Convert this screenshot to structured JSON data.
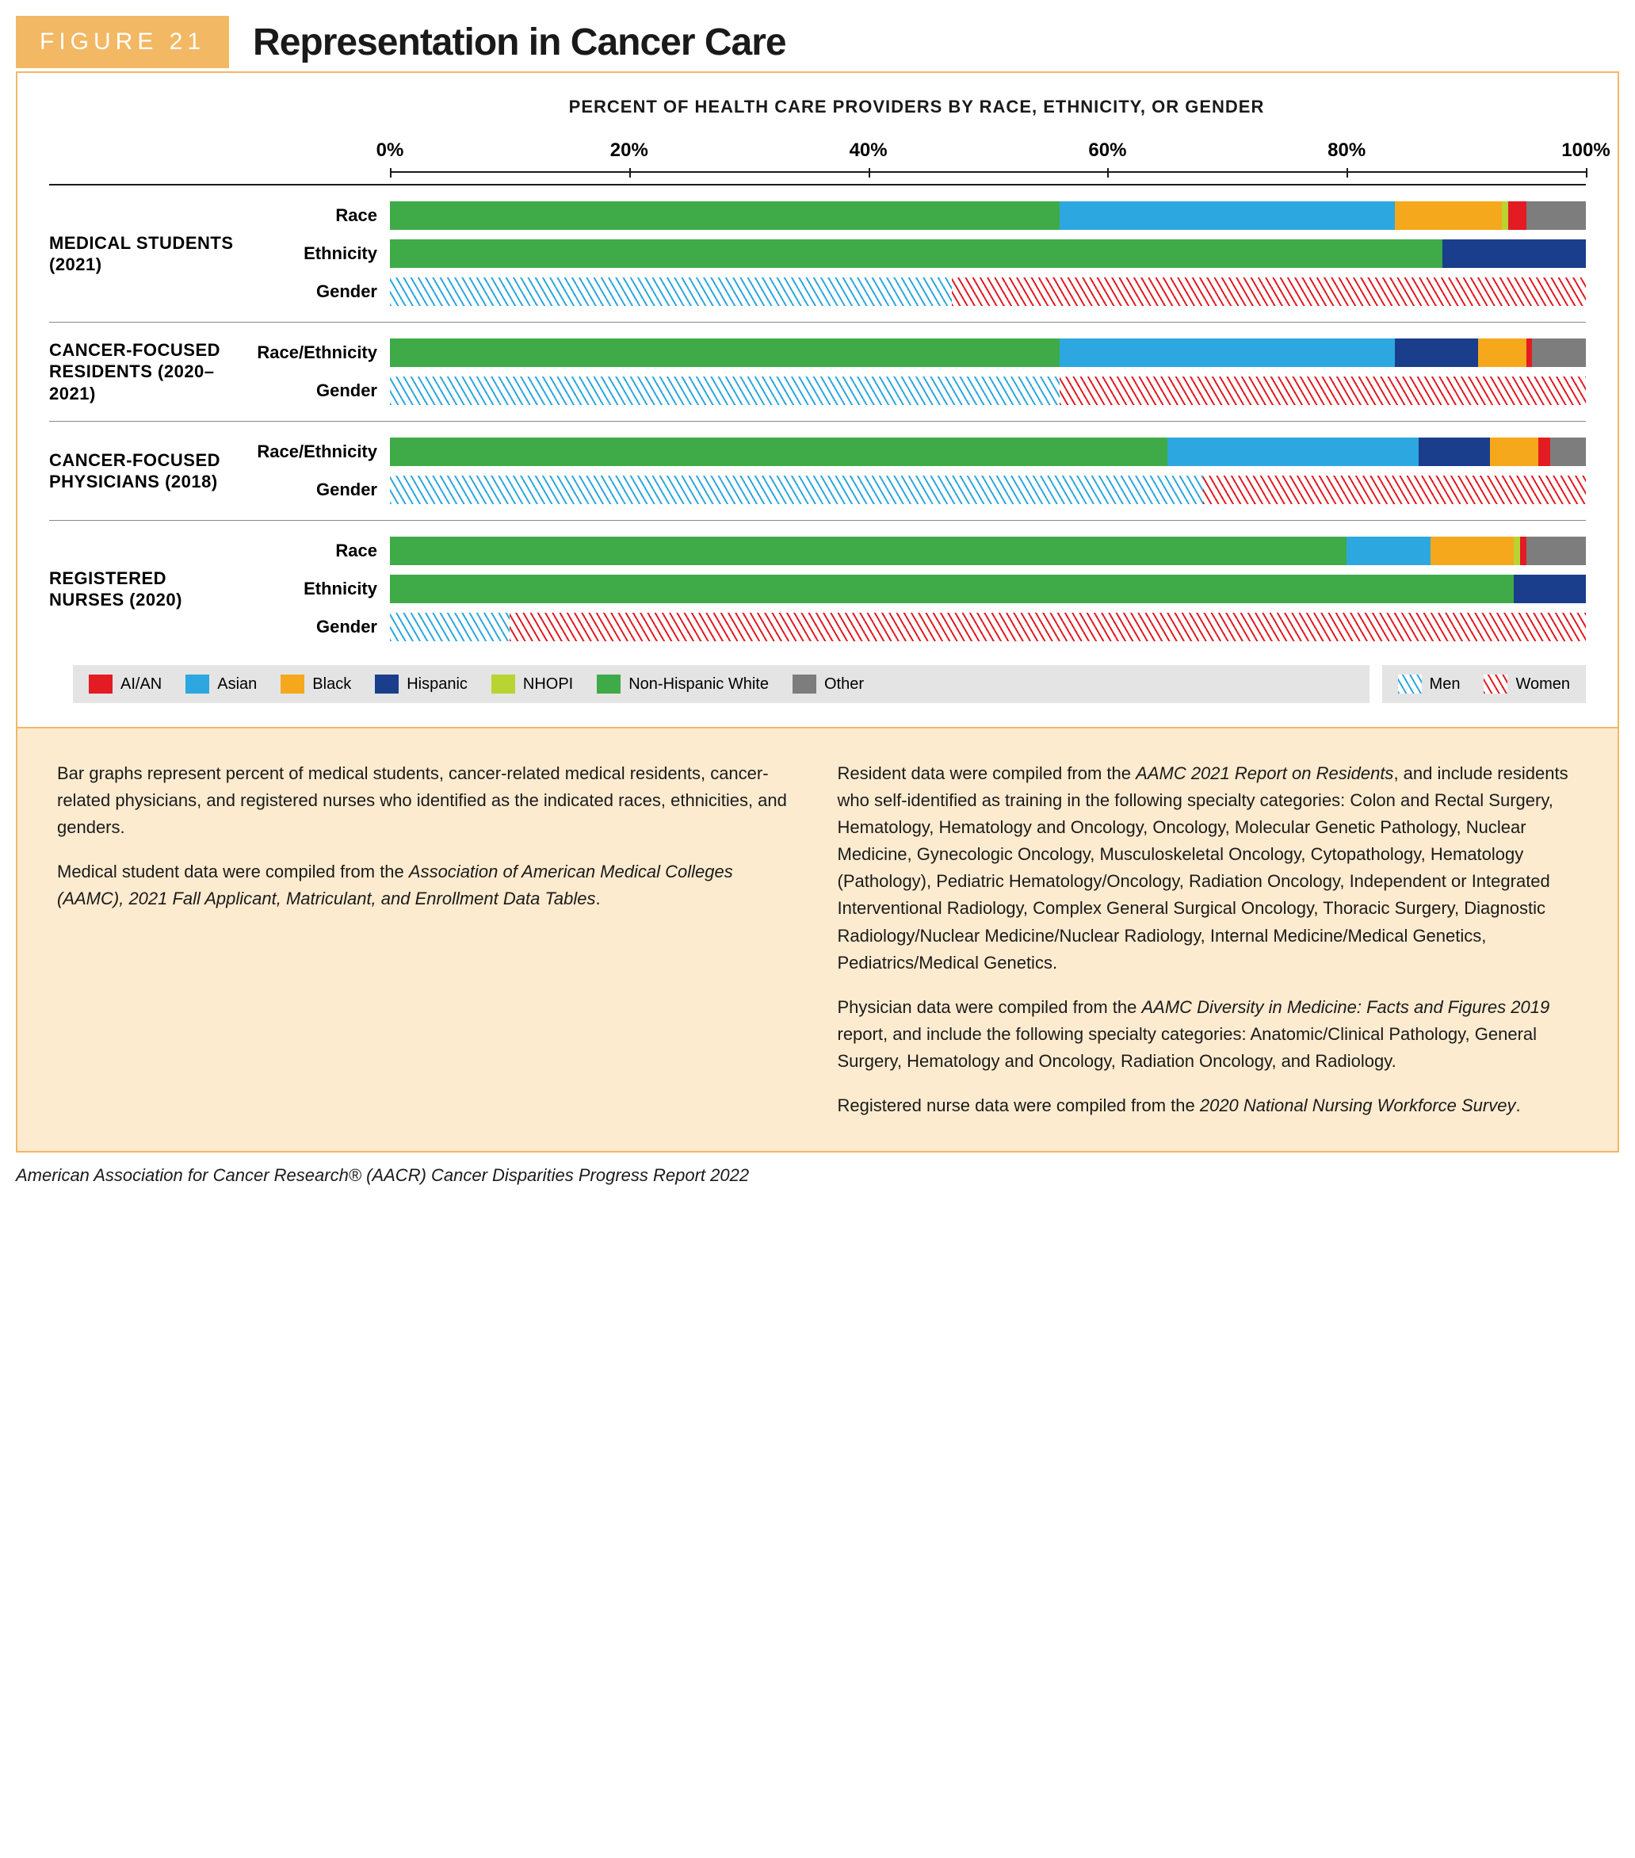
{
  "figure_label": "FIGURE 21",
  "figure_title": "Representation in Cancer Care",
  "chart": {
    "heading": "PERCENT OF HEALTH CARE PROVIDERS BY RACE, ETHNICITY, OR GENDER",
    "axis": {
      "ticks": [
        0,
        20,
        40,
        60,
        80,
        100
      ],
      "labels": [
        "0%",
        "20%",
        "40%",
        "60%",
        "80%",
        "100%"
      ]
    },
    "colors": {
      "aian": "#e31b23",
      "asian": "#2da7df",
      "black": "#f5a81c",
      "hispanic": "#1a3e8b",
      "nhopi": "#b8d432",
      "white": "#3eab48",
      "other": "#7d7d7d",
      "men_stroke": "#2da7df",
      "women_stroke": "#e31b23",
      "pattern_bg": "#ffffff"
    },
    "groups": [
      {
        "label": "MEDICAL STUDENTS (2021)",
        "rows": [
          {
            "name": "Race",
            "type": "solid",
            "segments": [
              {
                "key": "white",
                "pct": 56
              },
              {
                "key": "asian",
                "pct": 28
              },
              {
                "key": "black",
                "pct": 9
              },
              {
                "key": "nhopi",
                "pct": 0.5
              },
              {
                "key": "aian",
                "pct": 1.5
              },
              {
                "key": "other",
                "pct": 5
              }
            ]
          },
          {
            "name": "Ethnicity",
            "type": "solid",
            "segments": [
              {
                "key": "white",
                "pct": 88
              },
              {
                "key": "hispanic",
                "pct": 12
              }
            ]
          },
          {
            "name": "Gender",
            "type": "hatch",
            "segments": [
              {
                "key": "men",
                "pct": 47
              },
              {
                "key": "women",
                "pct": 53
              }
            ]
          }
        ]
      },
      {
        "label": "CANCER-FOCUSED RESIDENTS (2020–2021)",
        "rows": [
          {
            "name": "Race/Ethnicity",
            "type": "solid",
            "segments": [
              {
                "key": "white",
                "pct": 56
              },
              {
                "key": "asian",
                "pct": 28
              },
              {
                "key": "hispanic",
                "pct": 7
              },
              {
                "key": "black",
                "pct": 4
              },
              {
                "key": "aian",
                "pct": 0.5
              },
              {
                "key": "other",
                "pct": 4.5
              }
            ]
          },
          {
            "name": "Gender",
            "type": "hatch",
            "segments": [
              {
                "key": "men",
                "pct": 56
              },
              {
                "key": "women",
                "pct": 44
              }
            ]
          }
        ]
      },
      {
        "label": "CANCER-FOCUSED PHYSICIANS (2018)",
        "rows": [
          {
            "name": "Race/Ethnicity",
            "type": "solid",
            "segments": [
              {
                "key": "white",
                "pct": 65
              },
              {
                "key": "asian",
                "pct": 21
              },
              {
                "key": "hispanic",
                "pct": 6
              },
              {
                "key": "black",
                "pct": 4
              },
              {
                "key": "aian",
                "pct": 1
              },
              {
                "key": "other",
                "pct": 3
              }
            ]
          },
          {
            "name": "Gender",
            "type": "hatch",
            "segments": [
              {
                "key": "men",
                "pct": 68
              },
              {
                "key": "women",
                "pct": 32
              }
            ]
          }
        ]
      },
      {
        "label": "REGISTERED NURSES (2020)",
        "rows": [
          {
            "name": "Race",
            "type": "solid",
            "segments": [
              {
                "key": "white",
                "pct": 80
              },
              {
                "key": "asian",
                "pct": 7
              },
              {
                "key": "black",
                "pct": 7
              },
              {
                "key": "nhopi",
                "pct": 0.5
              },
              {
                "key": "aian",
                "pct": 0.5
              },
              {
                "key": "other",
                "pct": 5
              }
            ]
          },
          {
            "name": "Ethnicity",
            "type": "solid",
            "segments": [
              {
                "key": "white",
                "pct": 94
              },
              {
                "key": "hispanic",
                "pct": 6
              }
            ]
          },
          {
            "name": "Gender",
            "type": "hatch",
            "segments": [
              {
                "key": "men",
                "pct": 10
              },
              {
                "key": "women",
                "pct": 90
              }
            ]
          }
        ]
      }
    ],
    "legend_solid": [
      {
        "key": "aian",
        "label": "AI/AN"
      },
      {
        "key": "asian",
        "label": "Asian"
      },
      {
        "key": "black",
        "label": "Black"
      },
      {
        "key": "hispanic",
        "label": "Hispanic"
      },
      {
        "key": "nhopi",
        "label": "NHOPI"
      },
      {
        "key": "white",
        "label": "Non-Hispanic White"
      },
      {
        "key": "other",
        "label": "Other"
      }
    ],
    "legend_hatch": [
      {
        "key": "men",
        "label": "Men"
      },
      {
        "key": "women",
        "label": "Women"
      }
    ]
  },
  "caption_paragraphs": [
    "Bar graphs represent percent of medical students, cancer-related medical residents, cancer-related physicians, and registered nurses who identified as the indicated races, ethnicities, and genders.",
    "Medical student data were compiled from the <em>Association of American Medical Colleges (AAMC), 2021 Fall Applicant, Matriculant, and Enrollment Data Tables</em>.",
    "Resident data were compiled from the <em>AAMC 2021 Report on Residents</em>, and include residents who self-identified as training in the following specialty categories: Colon and Rectal Surgery, Hematology, Hematology and Oncology, Oncology, Molecular Genetic Pathology, Nuclear Medicine, Gynecologic Oncology, Musculoskeletal Oncology, Cytopathology, Hematology (Pathology), Pediatric Hematology/Oncology, Radiation Oncology, Independent or Integrated Interventional Radiology, Complex General Surgical Oncology, Thoracic Surgery, Diagnostic Radiology/Nuclear Medicine/Nuclear Radiology, Internal Medicine/Medical Genetics, Pediatrics/Medical Genetics.",
    "Physician data were compiled from the <em>AAMC Diversity in Medicine: Facts and Figures 2019</em> report, and include the following specialty categories: Anatomic/Clinical Pathology, General Surgery, Hematology and Oncology, Radiation Oncology, and Radiology.",
    "Registered nurse data were compiled from the <em>2020 National Nursing Workforce Survey</em>."
  ],
  "footnote": "American Association for Cancer Research® (AACR) Cancer Disparities Progress Report 2022"
}
